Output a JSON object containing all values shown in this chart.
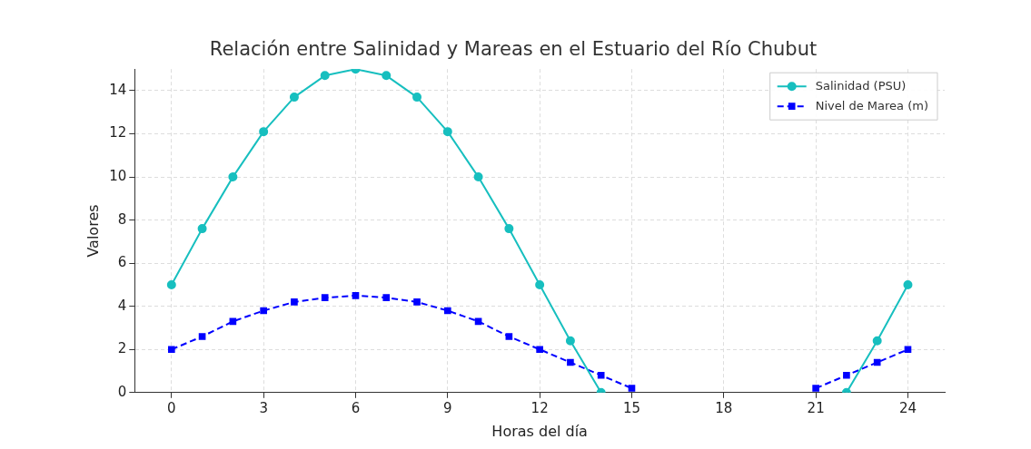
{
  "chart_data": {
    "type": "line",
    "title": "Relación entre Salinidad y Mareas en el Estuario del Río Chubut",
    "xlabel": "Horas del día",
    "ylabel": "Valores",
    "x": [
      0,
      1,
      2,
      3,
      4,
      5,
      6,
      7,
      8,
      9,
      10,
      11,
      12,
      13,
      14,
      15,
      16,
      17,
      18,
      19,
      20,
      21,
      22,
      23,
      24
    ],
    "series": [
      {
        "name": "Salinidad (PSU)",
        "color": "#17bfbf",
        "marker": "circle",
        "line_style": "solid",
        "values": [
          5,
          7.6,
          10,
          12.1,
          13.7,
          14.7,
          15,
          14.7,
          13.7,
          12.1,
          10,
          7.6,
          5,
          2.4,
          0,
          null,
          null,
          null,
          null,
          null,
          null,
          null,
          0,
          2.4,
          5
        ]
      },
      {
        "name": "Nivel de Marea (m)",
        "color": "#0000ff",
        "marker": "square",
        "line_style": "dashed",
        "values": [
          2,
          2.6,
          3.3,
          3.8,
          4.2,
          4.4,
          4.5,
          4.4,
          4.2,
          3.8,
          3.3,
          2.6,
          2,
          1.4,
          0.8,
          0.2,
          null,
          null,
          null,
          null,
          null,
          0.2,
          0.8,
          1.4,
          2
        ]
      }
    ],
    "xlim": [
      -1.2,
      25.2
    ],
    "xticks": [
      0,
      3,
      6,
      9,
      12,
      15,
      18,
      21,
      24
    ],
    "ylim": [
      0,
      15
    ],
    "yticks": [
      0,
      2,
      4,
      6,
      8,
      10,
      12,
      14
    ],
    "grid": true,
    "legend": "top right"
  }
}
